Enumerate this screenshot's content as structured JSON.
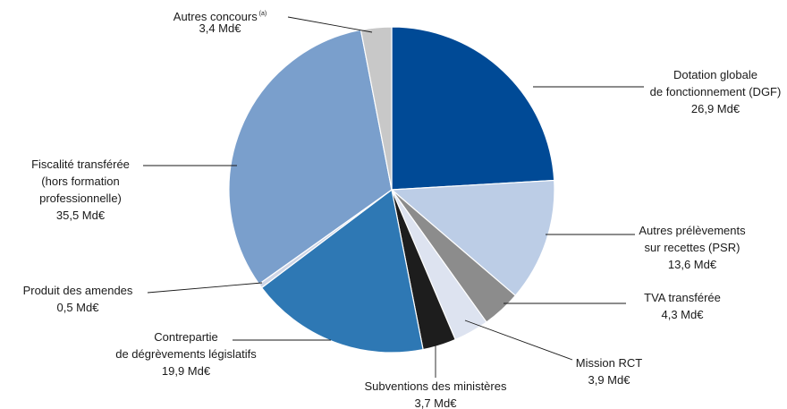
{
  "chart_data": {
    "type": "pie",
    "unit": "Md€",
    "slices": [
      {
        "name": "Dotation globale de fonctionnement (DGF)",
        "label_lines": [
          "Dotation globale",
          "de fonctionnement (DGF)"
        ],
        "value": 26.9,
        "value_label": "26,9 Md€",
        "color": "#004a96"
      },
      {
        "name": "Autres prélèvements sur recettes (PSR)",
        "label_lines": [
          "Autres prélèvements",
          "sur recettes (PSR)"
        ],
        "value": 13.6,
        "value_label": "13,6 Md€",
        "color": "#bccde6"
      },
      {
        "name": "TVA transférée",
        "label_lines": [
          "TVA transférée"
        ],
        "value": 4.3,
        "value_label": "4,3 Md€",
        "color": "#8c8c8c"
      },
      {
        "name": "Mission RCT",
        "label_lines": [
          "Mission RCT"
        ],
        "value": 3.9,
        "value_label": "3,9 Md€",
        "color": "#dde3f0"
      },
      {
        "name": "Subventions des ministères",
        "label_lines": [
          "Subventions des ministères"
        ],
        "value": 3.7,
        "value_label": "3,7 Md€",
        "color": "#1d1d1d"
      },
      {
        "name": "Contrepartie de dégrèvements législatifs",
        "label_lines": [
          "Contrepartie",
          "de dégrèvements législatifs"
        ],
        "value": 19.9,
        "value_label": "19,9 Md€",
        "color": "#2e78b4"
      },
      {
        "name": "Produit des amendes",
        "label_lines": [
          "Produit des amendes"
        ],
        "value": 0.5,
        "value_label": "0,5 Md€",
        "color": "#cfd6e6"
      },
      {
        "name": "Fiscalité transférée (hors formation professionnelle)",
        "label_lines": [
          "Fiscalité transférée",
          "(hors formation",
          "professionnelle)"
        ],
        "value": 35.5,
        "value_label": "35,5 Md€",
        "color": "#7a9fcc"
      },
      {
        "name": "Autres concours",
        "label_lines": [
          "Autres concours"
        ],
        "superscript": "(a)",
        "value": 3.4,
        "value_label": "3,4 Md€",
        "color": "#c8c8c8"
      }
    ],
    "start": "12 o'clock",
    "direction": "clockwise"
  }
}
